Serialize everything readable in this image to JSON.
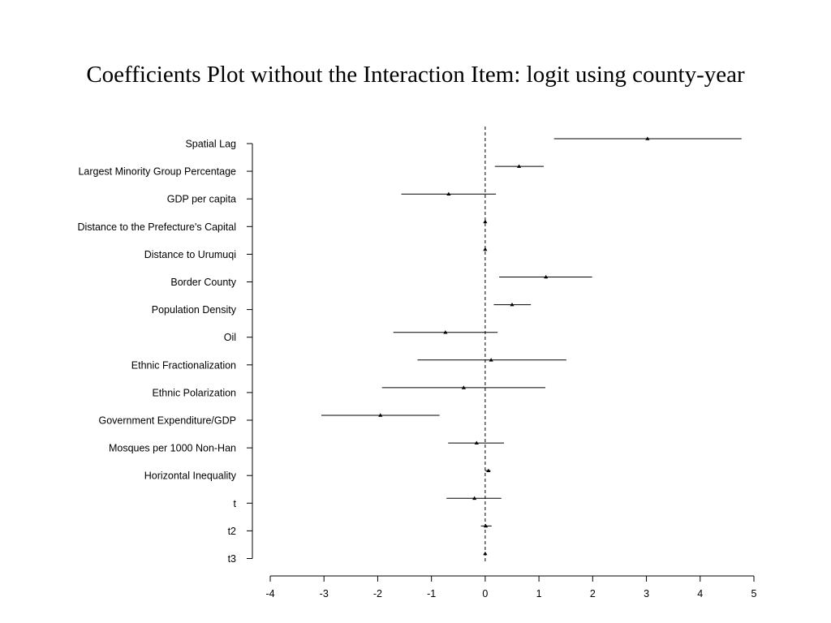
{
  "chart_data": {
    "type": "scatter",
    "title": "Coefficients Plot without the Interaction Item: logit using county-year",
    "xlabel": "",
    "ylabel": "",
    "xlim": [
      -4,
      5
    ],
    "x_ticks": [
      "-4",
      "-3",
      "-2",
      "-1",
      "0",
      "1",
      "2",
      "3",
      "4",
      "5"
    ],
    "reference_line": {
      "x": 0,
      "style": "dashed"
    },
    "grid": false,
    "series": [
      {
        "variables": [
          {
            "label": "Spatial Lag",
            "estimate": 3.02,
            "lower": 1.28,
            "upper": 4.77
          },
          {
            "label": "Largest Minority Group Percentage",
            "estimate": 0.63,
            "lower": 0.18,
            "upper": 1.09
          },
          {
            "label": "GDP per capita",
            "estimate": -0.68,
            "lower": -1.56,
            "upper": 0.2
          },
          {
            "label": "Distance to the Prefecture's Capital",
            "estimate": 0.0,
            "lower": -0.02,
            "upper": 0.02
          },
          {
            "label": "Distance to Urumuqi",
            "estimate": 0.0,
            "lower": -0.02,
            "upper": 0.02
          },
          {
            "label": "Border County",
            "estimate": 1.13,
            "lower": 0.26,
            "upper": 1.99
          },
          {
            "label": "Population Density",
            "estimate": 0.5,
            "lower": 0.16,
            "upper": 0.85
          },
          {
            "label": "Oil",
            "estimate": -0.74,
            "lower": -1.71,
            "upper": 0.23
          },
          {
            "label": "Ethnic Fractionalization",
            "estimate": 0.11,
            "lower": -1.26,
            "upper": 1.51
          },
          {
            "label": "Ethnic Polarization",
            "estimate": -0.4,
            "lower": -1.92,
            "upper": 1.12
          },
          {
            "label": "Government Expenditure/GDP",
            "estimate": -1.95,
            "lower": -3.05,
            "upper": -0.85
          },
          {
            "label": "Mosques per 1000 Non-Han",
            "estimate": -0.16,
            "lower": -0.69,
            "upper": 0.35
          },
          {
            "label": "Horizontal Inequality",
            "estimate": 0.06,
            "lower": 0.0,
            "upper": 0.1
          },
          {
            "label": "t",
            "estimate": -0.2,
            "lower": -0.72,
            "upper": 0.3
          },
          {
            "label": "t2",
            "estimate": 0.01,
            "lower": -0.08,
            "upper": 0.12
          },
          {
            "label": "t3",
            "estimate": 0.0,
            "lower": -0.02,
            "upper": 0.02
          }
        ]
      }
    ]
  }
}
